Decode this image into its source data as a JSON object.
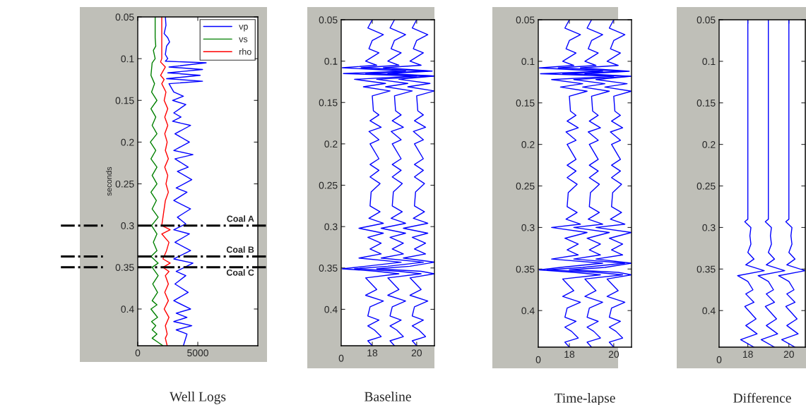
{
  "chart_data": [
    {
      "type": "line",
      "xlabel": "Well Logs",
      "ylabel": "seconds",
      "xlim": [
        0,
        10000
      ],
      "xticks": [
        0,
        5000
      ],
      "ylim": [
        0.444,
        0.05
      ],
      "yticks": [
        0.05,
        0.1,
        0.15,
        0.2,
        0.25,
        0.3,
        0.35,
        0.4
      ],
      "legend": "top right",
      "ref_lines": [
        {
          "axis": "y",
          "value": 0.3,
          "label": "Coal A",
          "color": "#000000",
          "line_style": "dashdot"
        },
        {
          "axis": "y",
          "value": 0.337,
          "label": "Coal B",
          "color": "#000000",
          "line_style": "dashdot"
        },
        {
          "axis": "y",
          "value": 0.35,
          "label": "Coal C",
          "color": "#000000",
          "line_style": "dashdot"
        }
      ],
      "series": [
        {
          "name": "vp",
          "color": "#0000ff",
          "x": [
            2300,
            2350,
            2200,
            2500,
            2650,
            2400,
            2300,
            2500,
            2300,
            5700,
            2600,
            5400,
            2500,
            5200,
            2400,
            5400,
            2600,
            3000,
            3800,
            2900,
            4000,
            3000,
            3600,
            2900,
            4400,
            3100,
            4300,
            3000,
            4600,
            3100,
            4200,
            3300,
            4500,
            3200,
            4100,
            3000,
            4400,
            3300,
            4000,
            3000,
            4300,
            3100,
            4400,
            3000,
            4600,
            3200,
            4000,
            3100,
            4200,
            3000,
            4400,
            3200,
            4100,
            3000,
            4500,
            3200,
            4100,
            3800
          ],
          "values": [
            0.05,
            0.06,
            0.07,
            0.075,
            0.08,
            0.085,
            0.095,
            0.1,
            0.103,
            0.105,
            0.11,
            0.113,
            0.117,
            0.12,
            0.124,
            0.127,
            0.13,
            0.14,
            0.145,
            0.15,
            0.155,
            0.165,
            0.17,
            0.175,
            0.18,
            0.19,
            0.2,
            0.21,
            0.215,
            0.22,
            0.23,
            0.235,
            0.245,
            0.255,
            0.26,
            0.27,
            0.28,
            0.29,
            0.298,
            0.305,
            0.31,
            0.32,
            0.33,
            0.34,
            0.345,
            0.355,
            0.36,
            0.37,
            0.38,
            0.39,
            0.4,
            0.405,
            0.41,
            0.415,
            0.42,
            0.425,
            0.43,
            0.444
          ]
        },
        {
          "name": "vs",
          "color": "#008000",
          "x": [
            1450,
            1450,
            1500,
            1300,
            1450,
            1200,
            1100,
            1400,
            1150,
            1600,
            1100,
            1500,
            1200,
            1600,
            1050,
            1500,
            1100,
            1600,
            1200,
            1600,
            1100,
            1550,
            1200,
            1700,
            1150,
            1600,
            1300,
            1600,
            1100,
            1700,
            1200,
            1700,
            1250,
            1650,
            1200,
            1600,
            1100,
            1650,
            1150,
            1500,
            1200,
            1600,
            1200,
            1700,
            2100
          ],
          "values": [
            0.05,
            0.075,
            0.085,
            0.09,
            0.1,
            0.105,
            0.12,
            0.13,
            0.14,
            0.15,
            0.16,
            0.17,
            0.18,
            0.19,
            0.2,
            0.21,
            0.22,
            0.23,
            0.24,
            0.25,
            0.26,
            0.27,
            0.28,
            0.29,
            0.3,
            0.31,
            0.32,
            0.33,
            0.337,
            0.345,
            0.35,
            0.36,
            0.37,
            0.38,
            0.39,
            0.395,
            0.4,
            0.41,
            0.415,
            0.42,
            0.425,
            0.43,
            0.435,
            0.44,
            0.444
          ]
        },
        {
          "name": "rho",
          "color": "#ff0000",
          "x": [
            2000,
            2000,
            1900,
            2300,
            1900,
            2200,
            2000,
            2350,
            2200,
            2500,
            2250,
            2500,
            2250,
            2450,
            2300,
            2550,
            2250,
            2500,
            2350,
            2550,
            2300,
            2000,
            2700,
            2000,
            2600,
            2400,
            2100,
            2700,
            2100,
            2600,
            2300,
            2550,
            2250,
            2550,
            2200,
            2600,
            2300,
            2450,
            2300,
            2450
          ],
          "values": [
            0.05,
            0.1,
            0.104,
            0.11,
            0.12,
            0.125,
            0.13,
            0.14,
            0.15,
            0.16,
            0.17,
            0.18,
            0.19,
            0.2,
            0.21,
            0.22,
            0.23,
            0.24,
            0.25,
            0.26,
            0.27,
            0.3,
            0.305,
            0.31,
            0.32,
            0.33,
            0.34,
            0.345,
            0.35,
            0.355,
            0.36,
            0.37,
            0.38,
            0.39,
            0.4,
            0.41,
            0.42,
            0.43,
            0.435,
            0.444
          ]
        }
      ]
    },
    {
      "type": "line",
      "xlabel": "Baseline",
      "annotations": [
        "0"
      ],
      "xlim": [
        16.6,
        20.8
      ],
      "xticks": [
        18,
        20
      ],
      "ylim": [
        0.444,
        0.05
      ],
      "yticks": [
        0.05,
        0.1,
        0.15,
        0.2,
        0.25,
        0.3,
        0.35,
        0.4
      ],
      "series": [
        {
          "color": "#0000ff",
          "x": [
            18,
            17.8,
            18.5,
            18,
            17.85,
            18.3,
            17.7,
            18.2,
            16.65,
            19.5,
            16.7,
            20,
            17.2,
            18.6,
            17.6,
            18.8,
            18,
            18.05,
            18.3,
            17.9,
            18.4,
            17.85,
            18.3,
            17.9,
            18.3,
            17.9,
            18.3,
            17.9,
            18.35,
            17.95,
            17.9,
            18.35,
            17.85,
            18.5,
            17.4,
            18.5,
            17.8,
            18.4,
            17.9,
            18.4,
            17.4,
            19.3,
            17.7,
            16.65,
            18.2,
            19.2,
            17.7,
            18.2,
            17.7,
            18.5,
            17.9,
            17.8,
            18.3,
            17.8,
            18.1,
            18.4,
            17.8,
            18
          ],
          "values": [
            0.05,
            0.06,
            0.068,
            0.075,
            0.085,
            0.09,
            0.1,
            0.105,
            0.108,
            0.112,
            0.115,
            0.118,
            0.122,
            0.127,
            0.131,
            0.136,
            0.142,
            0.16,
            0.165,
            0.172,
            0.18,
            0.185,
            0.195,
            0.2,
            0.218,
            0.225,
            0.232,
            0.24,
            0.248,
            0.258,
            0.275,
            0.282,
            0.29,
            0.296,
            0.302,
            0.308,
            0.313,
            0.32,
            0.327,
            0.333,
            0.338,
            0.343,
            0.348,
            0.351,
            0.354,
            0.357,
            0.362,
            0.376,
            0.383,
            0.39,
            0.397,
            0.408,
            0.413,
            0.42,
            0.425,
            0.433,
            0.438,
            0.444
          ]
        },
        {
          "color": "#0000ff",
          "x": [
            19,
            18.8,
            19.5,
            19,
            18.85,
            19.3,
            18.7,
            19.2,
            17.5,
            20.5,
            17.7,
            20.75,
            18.2,
            19.6,
            18.6,
            19.8,
            19,
            19.05,
            19.3,
            18.9,
            19.4,
            18.85,
            19.3,
            18.9,
            19.3,
            18.9,
            19.3,
            18.9,
            19.35,
            18.95,
            18.9,
            19.35,
            18.85,
            19.5,
            18.4,
            19.5,
            18.8,
            19.4,
            18.9,
            19.4,
            18.4,
            20.3,
            18.7,
            17.2,
            19.2,
            20.2,
            18.7,
            19.2,
            18.7,
            19.5,
            18.9,
            18.8,
            19.3,
            18.8,
            19.1,
            19.4,
            18.8,
            19
          ],
          "values": [
            0.05,
            0.06,
            0.068,
            0.075,
            0.085,
            0.09,
            0.1,
            0.105,
            0.108,
            0.112,
            0.115,
            0.118,
            0.122,
            0.127,
            0.131,
            0.136,
            0.142,
            0.16,
            0.165,
            0.172,
            0.18,
            0.185,
            0.195,
            0.2,
            0.218,
            0.225,
            0.232,
            0.24,
            0.248,
            0.258,
            0.275,
            0.282,
            0.29,
            0.296,
            0.302,
            0.308,
            0.313,
            0.32,
            0.327,
            0.333,
            0.338,
            0.343,
            0.348,
            0.351,
            0.354,
            0.357,
            0.362,
            0.376,
            0.383,
            0.39,
            0.397,
            0.408,
            0.413,
            0.42,
            0.425,
            0.433,
            0.438,
            0.444
          ]
        },
        {
          "color": "#0000ff",
          "x": [
            20,
            19.8,
            20.5,
            20,
            19.85,
            20.3,
            19.7,
            20.2,
            18.5,
            20.7,
            18.7,
            20.8,
            19.2,
            20.6,
            19.6,
            20.8,
            20,
            20.05,
            20.3,
            19.9,
            20.4,
            19.85,
            20.3,
            19.9,
            20.3,
            19.9,
            20.3,
            19.9,
            20.35,
            19.95,
            19.9,
            20.35,
            19.85,
            20.5,
            19.4,
            20.5,
            19.8,
            20.4,
            19.9,
            20.4,
            19.4,
            20.8,
            19.7,
            18.2,
            20.2,
            20.8,
            19.7,
            20.2,
            19.7,
            20.5,
            19.9,
            19.8,
            20.3,
            19.8,
            20.1,
            20.4,
            19.8,
            20
          ],
          "values": [
            0.05,
            0.06,
            0.068,
            0.075,
            0.085,
            0.09,
            0.1,
            0.105,
            0.108,
            0.112,
            0.115,
            0.118,
            0.122,
            0.127,
            0.131,
            0.136,
            0.142,
            0.16,
            0.165,
            0.172,
            0.18,
            0.185,
            0.195,
            0.2,
            0.218,
            0.225,
            0.232,
            0.24,
            0.248,
            0.258,
            0.275,
            0.282,
            0.29,
            0.296,
            0.302,
            0.308,
            0.313,
            0.32,
            0.327,
            0.333,
            0.338,
            0.343,
            0.348,
            0.351,
            0.354,
            0.357,
            0.362,
            0.376,
            0.383,
            0.39,
            0.397,
            0.408,
            0.413,
            0.42,
            0.425,
            0.433,
            0.438,
            0.444
          ]
        }
      ]
    },
    {
      "type": "line",
      "xlabel": "Time-lapse",
      "annotations": [
        "0"
      ],
      "xlim": [
        16.6,
        20.8
      ],
      "xticks": [
        18,
        20
      ],
      "ylim": [
        0.444,
        0.05
      ],
      "yticks": [
        0.05,
        0.1,
        0.15,
        0.2,
        0.25,
        0.3,
        0.35,
        0.4
      ],
      "series": [
        {
          "color": "#0000ff",
          "x": [
            18,
            17.8,
            18.5,
            18,
            17.85,
            18.3,
            17.7,
            18.2,
            16.65,
            19.5,
            16.7,
            20,
            17.2,
            18.6,
            17.6,
            18.8,
            18,
            18.05,
            18.3,
            17.9,
            18.4,
            17.85,
            18.3,
            17.9,
            18.3,
            17.9,
            18.3,
            17.9,
            18.35,
            17.95,
            17.9,
            18.35,
            17.85,
            18.5,
            17.2,
            18.8,
            17.8,
            18.4,
            17.9,
            18.4,
            17.2,
            19.5,
            17.6,
            16.65,
            18.2,
            19.4,
            17.7,
            18.2,
            17.7,
            18.5,
            17.9,
            17.8,
            18.3,
            17.8,
            18.1,
            18.4,
            17.8,
            18
          ],
          "values": [
            0.05,
            0.06,
            0.068,
            0.075,
            0.085,
            0.09,
            0.1,
            0.105,
            0.108,
            0.112,
            0.115,
            0.118,
            0.122,
            0.127,
            0.131,
            0.136,
            0.142,
            0.16,
            0.165,
            0.172,
            0.18,
            0.185,
            0.195,
            0.2,
            0.218,
            0.225,
            0.232,
            0.24,
            0.248,
            0.258,
            0.275,
            0.282,
            0.29,
            0.296,
            0.3,
            0.306,
            0.313,
            0.32,
            0.327,
            0.333,
            0.338,
            0.343,
            0.348,
            0.351,
            0.354,
            0.357,
            0.362,
            0.376,
            0.383,
            0.39,
            0.397,
            0.408,
            0.413,
            0.42,
            0.425,
            0.433,
            0.438,
            0.444
          ]
        },
        {
          "color": "#0000ff",
          "x": [
            19,
            18.8,
            19.5,
            19,
            18.85,
            19.3,
            18.7,
            19.2,
            17.5,
            20.5,
            17.7,
            20.75,
            18.2,
            19.6,
            18.6,
            19.8,
            19,
            19.05,
            19.3,
            18.9,
            19.4,
            18.85,
            19.3,
            18.9,
            19.3,
            18.9,
            19.3,
            18.9,
            19.35,
            18.95,
            18.9,
            19.35,
            18.85,
            19.5,
            18.2,
            19.8,
            18.8,
            19.4,
            18.9,
            19.4,
            18.2,
            20.5,
            18.6,
            17.0,
            19.2,
            20.4,
            18.7,
            19.2,
            18.7,
            19.5,
            18.9,
            18.8,
            19.3,
            18.8,
            19.1,
            19.4,
            18.8,
            19
          ],
          "values": [
            0.05,
            0.06,
            0.068,
            0.075,
            0.085,
            0.09,
            0.1,
            0.105,
            0.108,
            0.112,
            0.115,
            0.118,
            0.122,
            0.127,
            0.131,
            0.136,
            0.142,
            0.16,
            0.165,
            0.172,
            0.18,
            0.185,
            0.195,
            0.2,
            0.218,
            0.225,
            0.232,
            0.24,
            0.248,
            0.258,
            0.275,
            0.282,
            0.29,
            0.296,
            0.3,
            0.306,
            0.313,
            0.32,
            0.327,
            0.333,
            0.338,
            0.343,
            0.348,
            0.351,
            0.354,
            0.357,
            0.362,
            0.376,
            0.383,
            0.39,
            0.397,
            0.408,
            0.413,
            0.42,
            0.425,
            0.433,
            0.438,
            0.444
          ]
        },
        {
          "color": "#0000ff",
          "x": [
            20,
            19.8,
            20.5,
            20,
            19.85,
            20.3,
            19.7,
            20.2,
            18.5,
            20.7,
            18.7,
            20.8,
            19.2,
            20.6,
            19.6,
            20.8,
            20,
            20.05,
            20.3,
            19.9,
            20.4,
            19.85,
            20.3,
            19.9,
            20.3,
            19.9,
            20.3,
            19.9,
            20.35,
            19.95,
            19.9,
            20.35,
            19.85,
            20.5,
            19.2,
            20.8,
            19.8,
            20.4,
            19.9,
            20.4,
            19.2,
            20.8,
            19.6,
            18.0,
            20.2,
            20.8,
            19.7,
            20.2,
            19.7,
            20.5,
            19.9,
            19.8,
            20.3,
            19.8,
            20.1,
            20.4,
            19.8,
            20
          ],
          "values": [
            0.05,
            0.06,
            0.068,
            0.075,
            0.085,
            0.09,
            0.1,
            0.105,
            0.108,
            0.112,
            0.115,
            0.118,
            0.122,
            0.127,
            0.131,
            0.136,
            0.142,
            0.16,
            0.165,
            0.172,
            0.18,
            0.185,
            0.195,
            0.2,
            0.218,
            0.225,
            0.232,
            0.24,
            0.248,
            0.258,
            0.275,
            0.282,
            0.29,
            0.296,
            0.3,
            0.306,
            0.313,
            0.32,
            0.327,
            0.333,
            0.338,
            0.343,
            0.348,
            0.351,
            0.354,
            0.357,
            0.362,
            0.376,
            0.383,
            0.39,
            0.397,
            0.408,
            0.413,
            0.42,
            0.425,
            0.433,
            0.438,
            0.444
          ]
        }
      ]
    },
    {
      "type": "line",
      "xlabel": "Difference",
      "annotations": [
        "0"
      ],
      "xlim": [
        16.6,
        20.8
      ],
      "xticks": [
        18,
        20
      ],
      "ylim": [
        0.444,
        0.05
      ],
      "yticks": [
        0.05,
        0.1,
        0.15,
        0.2,
        0.25,
        0.3,
        0.35,
        0.4
      ],
      "series": [
        {
          "color": "#0000ff",
          "x": [
            18,
            18,
            17.85,
            18.15,
            18.1,
            18.15,
            18,
            18.3,
            17.9,
            18.8,
            17.5,
            18,
            18.25,
            17.9,
            18.3,
            17.85,
            18.4,
            17.9,
            18.45,
            17.65,
            18.3
          ],
          "values": [
            0.05,
            0.29,
            0.293,
            0.3,
            0.31,
            0.32,
            0.33,
            0.338,
            0.345,
            0.352,
            0.358,
            0.365,
            0.375,
            0.38,
            0.39,
            0.395,
            0.41,
            0.418,
            0.428,
            0.435,
            0.444
          ]
        },
        {
          "color": "#0000ff",
          "x": [
            19,
            19,
            18.85,
            19.15,
            19.1,
            19.15,
            19,
            19.3,
            18.9,
            19.8,
            18.5,
            19,
            19.25,
            18.9,
            19.3,
            18.85,
            19.4,
            18.9,
            19.45,
            18.65,
            19.3
          ],
          "values": [
            0.05,
            0.29,
            0.293,
            0.3,
            0.31,
            0.32,
            0.33,
            0.338,
            0.345,
            0.352,
            0.358,
            0.365,
            0.375,
            0.38,
            0.39,
            0.395,
            0.41,
            0.418,
            0.428,
            0.435,
            0.444
          ]
        },
        {
          "color": "#0000ff",
          "x": [
            20,
            20,
            19.85,
            20.15,
            20.1,
            20.15,
            20,
            20.3,
            19.9,
            20.8,
            19.5,
            20,
            20.25,
            19.9,
            20.3,
            19.85,
            20.4,
            19.9,
            20.45,
            19.65,
            20.3
          ],
          "values": [
            0.05,
            0.29,
            0.293,
            0.3,
            0.31,
            0.32,
            0.33,
            0.338,
            0.345,
            0.352,
            0.358,
            0.365,
            0.375,
            0.38,
            0.39,
            0.395,
            0.41,
            0.418,
            0.428,
            0.435,
            0.444
          ]
        }
      ]
    }
  ]
}
